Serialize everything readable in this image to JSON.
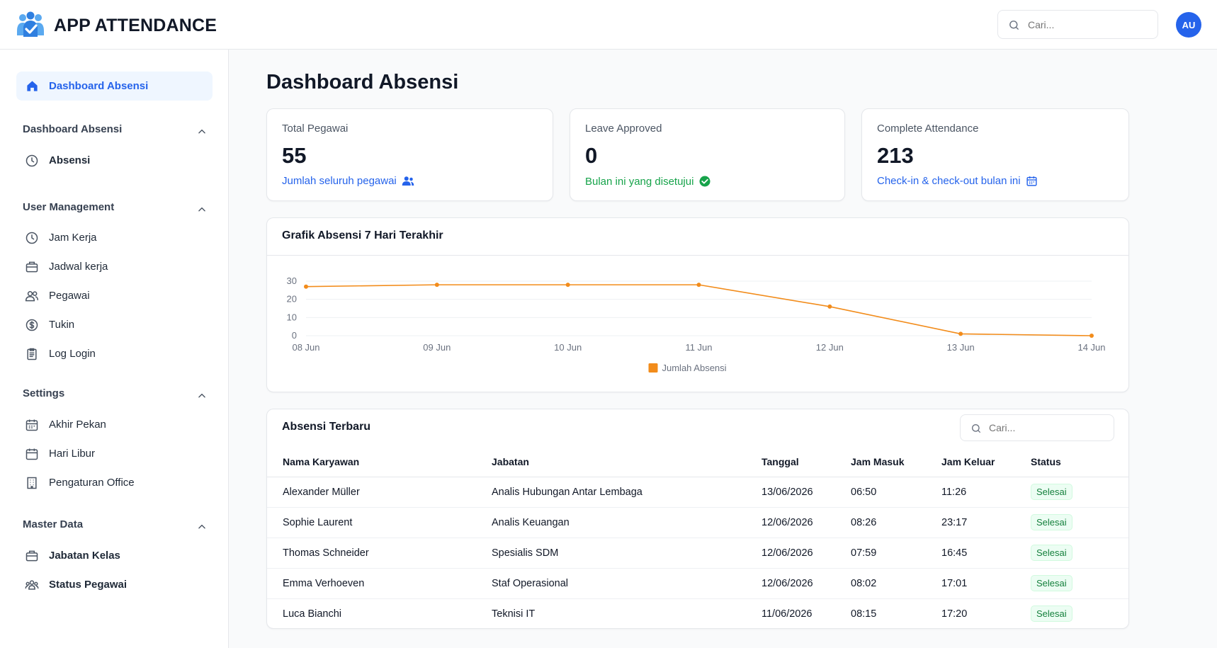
{
  "header": {
    "app_title": "APP ATTENDANCE",
    "search_placeholder": "Cari...",
    "avatar_initials": "AU"
  },
  "sidebar": {
    "active_item": "Dashboard Absensi",
    "groups": [
      {
        "title": "Dashboard Absensi",
        "items": [
          {
            "label": "Absensi",
            "icon": "clock-icon"
          }
        ]
      },
      {
        "title": "User Management",
        "items": [
          {
            "label": "Jam Kerja",
            "icon": "clock-icon"
          },
          {
            "label": "Jadwal kerja",
            "icon": "briefcase-icon"
          },
          {
            "label": "Pegawai",
            "icon": "users-icon"
          },
          {
            "label": "Tukin",
            "icon": "dollar-icon"
          },
          {
            "label": "Log Login",
            "icon": "clipboard-icon"
          }
        ]
      },
      {
        "title": "Settings",
        "items": [
          {
            "label": "Akhir Pekan",
            "icon": "calendar-icon"
          },
          {
            "label": "Hari Libur",
            "icon": "calendar-icon"
          },
          {
            "label": "Pengaturan Office",
            "icon": "building-icon"
          }
        ]
      },
      {
        "title": "Master Data",
        "items": [
          {
            "label": "Jabatan Kelas",
            "icon": "briefcase-icon"
          },
          {
            "label": "Status Pegawai",
            "icon": "users-group-icon"
          }
        ]
      }
    ]
  },
  "main": {
    "page_title": "Dashboard Absensi",
    "stats": [
      {
        "label": "Total Pegawai",
        "value": "55",
        "note": "Jumlah seluruh pegawai",
        "note_color": "#2563eb",
        "icon": "users-icon"
      },
      {
        "label": "Leave Approved",
        "value": "0",
        "note": "Bulan ini yang disetujui",
        "note_color": "#16a34a",
        "icon": "check-circle-icon"
      },
      {
        "label": "Complete Attendance",
        "value": "213",
        "note": "Check-in & check-out bulan ini",
        "note_color": "#2563eb",
        "icon": "calendar-icon"
      }
    ],
    "chart_title": "Grafik Absensi 7 Hari Terakhir",
    "table": {
      "title": "Absensi Terbaru",
      "search_placeholder": "Cari...",
      "columns": [
        "Nama Karyawan",
        "Jabatan",
        "Tanggal",
        "Jam Masuk",
        "Jam Keluar",
        "Status"
      ],
      "rows": [
        [
          "Alexander Müller",
          "Analis Hubungan Antar Lembaga",
          "13/06/2026",
          "06:50",
          "11:26",
          "Selesai"
        ],
        [
          "Sophie Laurent",
          "Analis Keuangan",
          "12/06/2026",
          "08:26",
          "23:17",
          "Selesai"
        ],
        [
          "Thomas Schneider",
          "Spesialis SDM",
          "12/06/2026",
          "07:59",
          "16:45",
          "Selesai"
        ],
        [
          "Emma Verhoeven",
          "Staf Operasional",
          "12/06/2026",
          "08:02",
          "17:01",
          "Selesai"
        ],
        [
          "Luca Bianchi",
          "Teknisi IT",
          "11/06/2026",
          "08:15",
          "17:20",
          "Selesai"
        ]
      ]
    }
  },
  "chart_data": {
    "type": "line",
    "title": "Grafik Absensi 7 Hari Terakhir",
    "categories": [
      "08 Jun",
      "09 Jun",
      "10 Jun",
      "11 Jun",
      "12 Jun",
      "13 Jun",
      "14 Jun"
    ],
    "series": [
      {
        "name": "Jumlah Absensi",
        "values": [
          27,
          28,
          28,
          28,
          16,
          1,
          0
        ],
        "color": "#f28c1b"
      }
    ],
    "yticks": [
      0,
      10,
      20,
      30
    ],
    "ylim": [
      0,
      30
    ],
    "grid": true,
    "legend": "bottom"
  }
}
